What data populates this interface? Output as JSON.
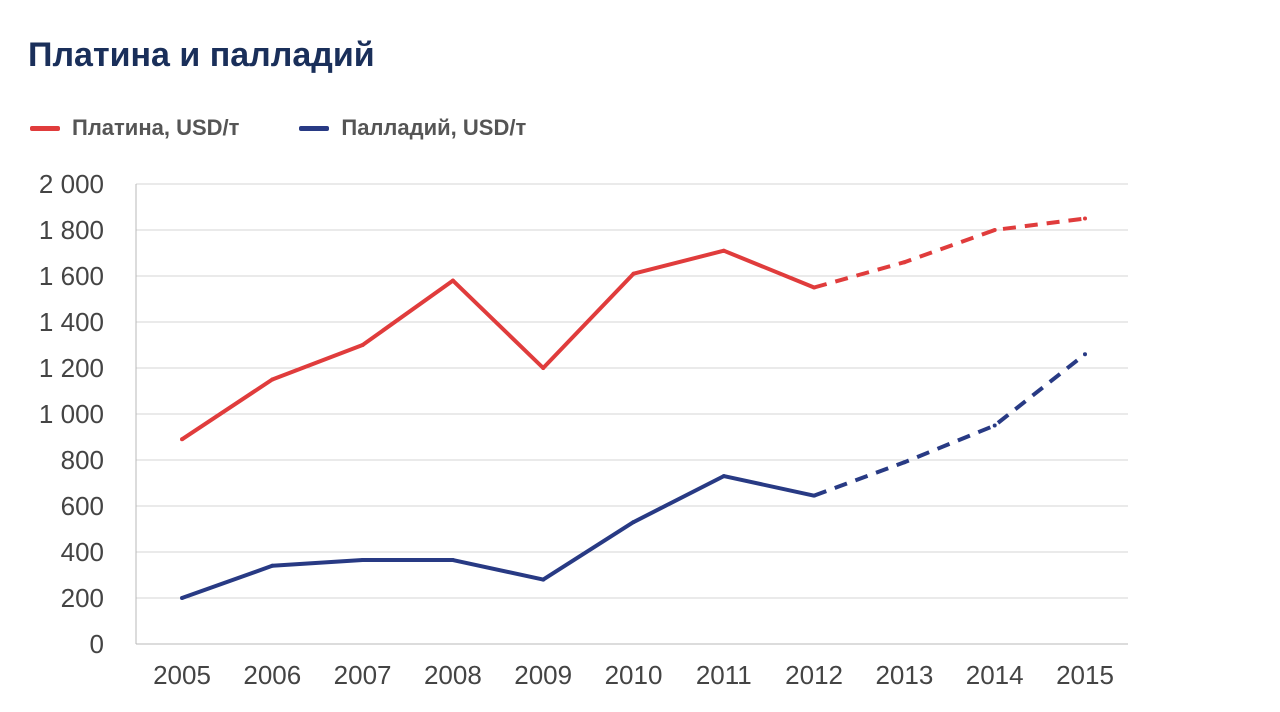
{
  "chart_data": {
    "type": "line",
    "title": "Платина и палладий",
    "xlabel": "",
    "ylabel": "",
    "categories": [
      "2005",
      "2006",
      "2007",
      "2008",
      "2009",
      "2010",
      "2011",
      "2012",
      "2013",
      "2014",
      "2015"
    ],
    "ylim": [
      0,
      2000
    ],
    "yticks": [
      0,
      200,
      400,
      600,
      800,
      1000,
      1200,
      1400,
      1600,
      1800,
      2000
    ],
    "ytick_labels": [
      "0",
      "200",
      "400",
      "600",
      "800",
      "1 000",
      "1 200",
      "1 400",
      "1 600",
      "1 800",
      "2 000"
    ],
    "grid": true,
    "legend_position": "top-left",
    "forecast_from_year": "2012",
    "series": [
      {
        "name": "Платина, USD/т",
        "color": "#e03c3c",
        "values": [
          890,
          1150,
          1300,
          1580,
          1200,
          1610,
          1710,
          1550,
          1660,
          1800,
          1850
        ]
      },
      {
        "name": "Палладий, USD/т",
        "color": "#283a84",
        "values": [
          200,
          340,
          365,
          365,
          280,
          530,
          730,
          645,
          790,
          950,
          1260
        ]
      }
    ]
  }
}
